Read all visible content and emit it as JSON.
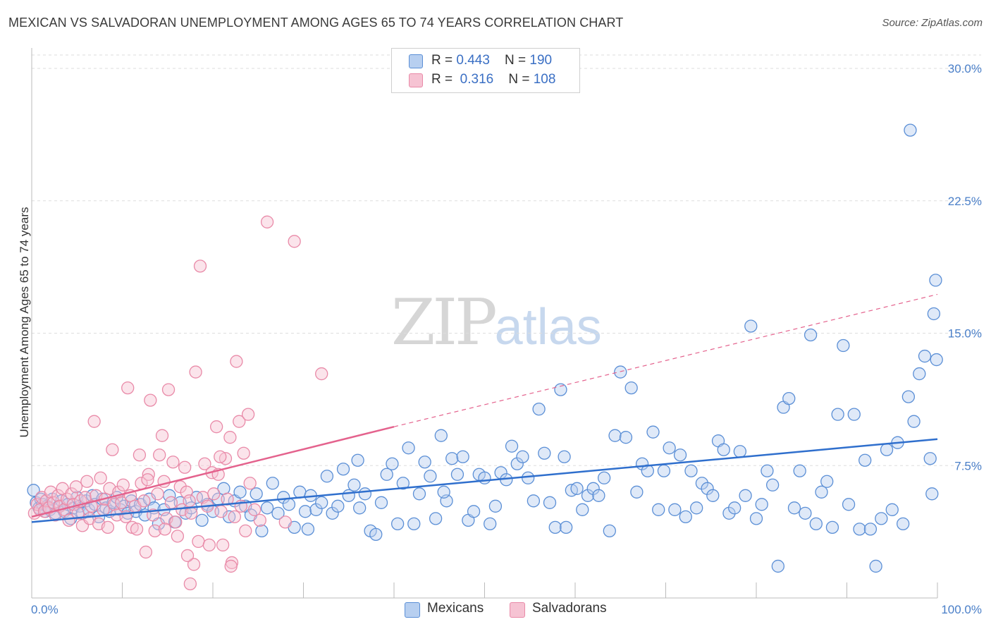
{
  "title": "MEXICAN VS SALVADORAN UNEMPLOYMENT AMONG AGES 65 TO 74 YEARS CORRELATION CHART",
  "source": "Source: ZipAtlas.com",
  "watermark": {
    "zip": "ZIP",
    "atlas": "atlas"
  },
  "legend": {
    "r_label": "R = ",
    "n_label": "N = ",
    "mexicans": {
      "r": "0.443",
      "n": "190"
    },
    "salvadorans": {
      "r": "0.316",
      "n": "108"
    }
  },
  "bottom_legend": {
    "mexicans": "Mexicans",
    "salvadorans": "Salvadorans"
  },
  "colors": {
    "mexicans": "#5b8fd6",
    "mexicans_fill": "#b7cff0",
    "mexicans_line": "#2f6fcd",
    "salvadorans": "#e98aa8",
    "salvadorans_fill": "#f6c3d3",
    "salvadorans_line": "#e4628d",
    "tick": "#4a7fc8",
    "grid": "#dddddd"
  },
  "chart_data": {
    "type": "scatter",
    "title": "MEXICAN VS SALVADORAN UNEMPLOYMENT AMONG AGES 65 TO 74 YEARS CORRELATION CHART",
    "xlabel": "",
    "ylabel": "Unemployment Among Ages 65 to 74 years",
    "xlim": [
      0,
      100
    ],
    "ylim": [
      0,
      30
    ],
    "x_tick_labels": [
      "0.0%",
      "100.0%"
    ],
    "y_ticks": [
      7.5,
      15.0,
      22.5,
      30.0
    ],
    "y_tick_labels": [
      "7.5%",
      "15.0%",
      "22.5%",
      "30.0%"
    ],
    "grid": "horizontal dashed",
    "series": [
      {
        "name": "Mexicans",
        "trend": {
          "x": [
            0,
            100
          ],
          "y": [
            4.3,
            9.0
          ],
          "style": "solid"
        },
        "points": [
          [
            0.2,
            6.1
          ],
          [
            0.5,
            5.4
          ],
          [
            0.8,
            5.1
          ],
          [
            1.0,
            5.6
          ],
          [
            1.2,
            5.3
          ],
          [
            1.5,
            4.9
          ],
          [
            1.7,
            5.2
          ],
          [
            2.0,
            5.0
          ],
          [
            2.3,
            5.6
          ],
          [
            2.6,
            4.8
          ],
          [
            3.0,
            5.2
          ],
          [
            3.3,
            5.5
          ],
          [
            3.6,
            4.9
          ],
          [
            4.0,
            5.3
          ],
          [
            4.3,
            4.5
          ],
          [
            4.6,
            5.1
          ],
          [
            5.0,
            5.7
          ],
          [
            5.3,
            5.2
          ],
          [
            5.6,
            4.8
          ],
          [
            6.0,
            5.5
          ],
          [
            6.3,
            5.0
          ],
          [
            6.7,
            5.8
          ],
          [
            7.0,
            5.3
          ],
          [
            7.4,
            4.6
          ],
          [
            7.8,
            5.6
          ],
          [
            8.2,
            5.1
          ],
          [
            8.6,
            4.9
          ],
          [
            9.0,
            5.4
          ],
          [
            9.4,
            5.7
          ],
          [
            9.8,
            5.0
          ],
          [
            10.2,
            5.2
          ],
          [
            10.6,
            4.8
          ],
          [
            11.0,
            5.5
          ],
          [
            11.5,
            4.9
          ],
          [
            12.0,
            5.3
          ],
          [
            12.5,
            4.7
          ],
          [
            13.0,
            5.6
          ],
          [
            13.5,
            5.1
          ],
          [
            14.0,
            4.2
          ],
          [
            14.6,
            5.0
          ],
          [
            15.2,
            5.8
          ],
          [
            15.8,
            4.3
          ],
          [
            16.4,
            5.4
          ],
          [
            17.0,
            4.8
          ],
          [
            17.6,
            5.1
          ],
          [
            18.2,
            5.7
          ],
          [
            18.8,
            4.4
          ],
          [
            19.4,
            5.3
          ],
          [
            20.0,
            4.9
          ],
          [
            20.6,
            5.6
          ],
          [
            21.2,
            6.2
          ],
          [
            21.8,
            4.6
          ],
          [
            22.4,
            5.5
          ],
          [
            23.0,
            6.0
          ],
          [
            23.6,
            5.2
          ],
          [
            24.2,
            4.7
          ],
          [
            24.8,
            5.9
          ],
          [
            25.4,
            3.8
          ],
          [
            26.0,
            5.1
          ],
          [
            26.6,
            6.5
          ],
          [
            27.2,
            4.8
          ],
          [
            27.8,
            5.7
          ],
          [
            28.4,
            5.3
          ],
          [
            29.0,
            4.0
          ],
          [
            29.6,
            6.0
          ],
          [
            30.2,
            4.9
          ],
          [
            30.8,
            5.8
          ],
          [
            31.4,
            5.0
          ],
          [
            32.0,
            5.4
          ],
          [
            32.6,
            6.9
          ],
          [
            33.2,
            4.8
          ],
          [
            33.8,
            5.2
          ],
          [
            34.4,
            7.3
          ],
          [
            35.0,
            5.8
          ],
          [
            35.6,
            6.4
          ],
          [
            36.2,
            5.1
          ],
          [
            36.8,
            5.9
          ],
          [
            37.4,
            3.8
          ],
          [
            38.0,
            3.6
          ],
          [
            38.6,
            5.4
          ],
          [
            39.2,
            7.0
          ],
          [
            39.8,
            7.6
          ],
          [
            40.4,
            4.2
          ],
          [
            41.0,
            6.5
          ],
          [
            41.6,
            8.5
          ],
          [
            42.2,
            4.2
          ],
          [
            42.8,
            5.9
          ],
          [
            43.4,
            7.7
          ],
          [
            44.0,
            6.9
          ],
          [
            44.6,
            4.5
          ],
          [
            45.2,
            9.2
          ],
          [
            45.8,
            5.5
          ],
          [
            46.4,
            7.9
          ],
          [
            47.0,
            7.0
          ],
          [
            47.6,
            8.0
          ],
          [
            48.2,
            4.4
          ],
          [
            48.8,
            4.9
          ],
          [
            49.4,
            7.0
          ],
          [
            50.0,
            6.8
          ],
          [
            50.6,
            4.2
          ],
          [
            51.2,
            5.2
          ],
          [
            51.8,
            7.1
          ],
          [
            52.4,
            6.7
          ],
          [
            53.0,
            8.6
          ],
          [
            53.6,
            7.6
          ],
          [
            54.2,
            8.0
          ],
          [
            54.8,
            6.8
          ],
          [
            55.4,
            5.5
          ],
          [
            56.0,
            10.7
          ],
          [
            56.6,
            8.2
          ],
          [
            57.2,
            5.4
          ],
          [
            57.8,
            4.0
          ],
          [
            58.4,
            11.8
          ],
          [
            59.0,
            4.0
          ],
          [
            59.6,
            6.1
          ],
          [
            60.2,
            6.2
          ],
          [
            60.8,
            5.0
          ],
          [
            61.4,
            5.8
          ],
          [
            62.0,
            6.2
          ],
          [
            62.6,
            5.8
          ],
          [
            63.2,
            6.8
          ],
          [
            63.8,
            3.8
          ],
          [
            64.4,
            9.2
          ],
          [
            65.0,
            12.8
          ],
          [
            65.6,
            9.1
          ],
          [
            66.2,
            11.9
          ],
          [
            66.8,
            6.0
          ],
          [
            67.4,
            7.6
          ],
          [
            68.0,
            7.2
          ],
          [
            68.6,
            9.4
          ],
          [
            69.2,
            5.0
          ],
          [
            69.8,
            7.2
          ],
          [
            70.4,
            8.5
          ],
          [
            71.0,
            5.0
          ],
          [
            71.6,
            8.1
          ],
          [
            72.2,
            4.6
          ],
          [
            72.8,
            7.2
          ],
          [
            73.4,
            5.1
          ],
          [
            74.0,
            6.5
          ],
          [
            74.6,
            6.2
          ],
          [
            75.2,
            5.8
          ],
          [
            75.8,
            8.9
          ],
          [
            76.4,
            8.4
          ],
          [
            77.0,
            4.8
          ],
          [
            77.6,
            5.1
          ],
          [
            78.2,
            8.3
          ],
          [
            78.8,
            5.8
          ],
          [
            79.4,
            15.4
          ],
          [
            80.0,
            4.5
          ],
          [
            80.6,
            5.3
          ],
          [
            81.2,
            7.2
          ],
          [
            81.8,
            6.4
          ],
          [
            82.4,
            1.8
          ],
          [
            83.0,
            10.8
          ],
          [
            83.6,
            11.3
          ],
          [
            84.2,
            5.1
          ],
          [
            84.8,
            7.2
          ],
          [
            85.4,
            4.8
          ],
          [
            86.0,
            14.9
          ],
          [
            86.6,
            4.2
          ],
          [
            87.2,
            6.0
          ],
          [
            87.8,
            6.6
          ],
          [
            88.4,
            4.0
          ],
          [
            89.0,
            10.4
          ],
          [
            89.6,
            14.3
          ],
          [
            90.2,
            5.3
          ],
          [
            90.8,
            10.4
          ],
          [
            91.4,
            3.9
          ],
          [
            92.0,
            7.8
          ],
          [
            92.6,
            3.9
          ],
          [
            93.2,
            1.8
          ],
          [
            93.8,
            4.5
          ],
          [
            94.4,
            8.4
          ],
          [
            95.0,
            5.0
          ],
          [
            95.6,
            8.8
          ],
          [
            96.2,
            4.2
          ],
          [
            96.8,
            11.4
          ],
          [
            97.4,
            10.0
          ],
          [
            98.0,
            12.7
          ],
          [
            98.6,
            13.7
          ],
          [
            99.2,
            7.9
          ],
          [
            99.6,
            16.1
          ],
          [
            99.8,
            18.0
          ],
          [
            97.0,
            26.5
          ],
          [
            99.9,
            13.5
          ],
          [
            99.4,
            5.9
          ],
          [
            58.8,
            8.0
          ],
          [
            45.5,
            6.0
          ],
          [
            36.0,
            7.8
          ],
          [
            30.5,
            3.9
          ]
        ]
      },
      {
        "name": "Salvadorans",
        "trend": {
          "x": [
            0,
            40,
            100
          ],
          "y": [
            4.6,
            9.7,
            17.2
          ],
          "style": "solid then dashed"
        },
        "points": [
          [
            0.3,
            4.8
          ],
          [
            0.6,
            5.3
          ],
          [
            0.9,
            5.0
          ],
          [
            1.1,
            5.7
          ],
          [
            1.4,
            4.9
          ],
          [
            1.6,
            5.5
          ],
          [
            1.9,
            5.1
          ],
          [
            2.1,
            6.0
          ],
          [
            2.4,
            5.4
          ],
          [
            2.6,
            4.7
          ],
          [
            2.9,
            5.8
          ],
          [
            3.1,
            5.2
          ],
          [
            3.4,
            6.2
          ],
          [
            3.6,
            5.0
          ],
          [
            3.9,
            5.6
          ],
          [
            4.1,
            4.4
          ],
          [
            4.4,
            5.9
          ],
          [
            4.6,
            5.3
          ],
          [
            4.9,
            6.3
          ],
          [
            5.1,
            4.8
          ],
          [
            5.4,
            5.5
          ],
          [
            5.6,
            4.1
          ],
          [
            5.9,
            5.7
          ],
          [
            6.1,
            6.6
          ],
          [
            6.4,
            4.5
          ],
          [
            6.6,
            5.2
          ],
          [
            6.9,
            10.0
          ],
          [
            7.1,
            5.8
          ],
          [
            7.4,
            4.2
          ],
          [
            7.6,
            6.8
          ],
          [
            7.9,
            5.0
          ],
          [
            8.1,
            5.6
          ],
          [
            8.4,
            4.0
          ],
          [
            8.6,
            6.2
          ],
          [
            8.9,
            8.4
          ],
          [
            9.1,
            5.3
          ],
          [
            9.4,
            4.7
          ],
          [
            9.6,
            6.0
          ],
          [
            9.9,
            5.4
          ],
          [
            10.1,
            6.4
          ],
          [
            10.4,
            4.6
          ],
          [
            10.6,
            11.9
          ],
          [
            10.9,
            5.8
          ],
          [
            11.1,
            4.0
          ],
          [
            11.4,
            5.2
          ],
          [
            11.6,
            3.9
          ],
          [
            11.9,
            8.1
          ],
          [
            12.1,
            6.5
          ],
          [
            12.4,
            5.5
          ],
          [
            12.6,
            2.6
          ],
          [
            12.9,
            7.0
          ],
          [
            13.1,
            11.2
          ],
          [
            13.4,
            4.7
          ],
          [
            13.6,
            3.8
          ],
          [
            13.9,
            5.9
          ],
          [
            14.1,
            8.1
          ],
          [
            14.4,
            9.2
          ],
          [
            14.6,
            6.6
          ],
          [
            14.9,
            4.5
          ],
          [
            15.1,
            11.8
          ],
          [
            15.4,
            5.4
          ],
          [
            15.6,
            7.7
          ],
          [
            15.9,
            4.3
          ],
          [
            16.1,
            3.5
          ],
          [
            16.4,
            6.3
          ],
          [
            16.6,
            5.0
          ],
          [
            16.9,
            7.4
          ],
          [
            17.1,
            6.0
          ],
          [
            17.4,
            5.5
          ],
          [
            17.6,
            4.8
          ],
          [
            17.9,
            1.9
          ],
          [
            18.1,
            12.8
          ],
          [
            18.4,
            3.2
          ],
          [
            18.6,
            18.8
          ],
          [
            18.9,
            5.7
          ],
          [
            19.1,
            7.6
          ],
          [
            19.4,
            5.2
          ],
          [
            19.6,
            3.0
          ],
          [
            19.9,
            7.1
          ],
          [
            20.1,
            5.9
          ],
          [
            20.4,
            9.7
          ],
          [
            20.6,
            7.0
          ],
          [
            20.9,
            4.9
          ],
          [
            21.1,
            3.0
          ],
          [
            21.4,
            7.9
          ],
          [
            21.6,
            5.6
          ],
          [
            21.9,
            9.1
          ],
          [
            22.1,
            2.0
          ],
          [
            22.4,
            4.6
          ],
          [
            22.6,
            13.4
          ],
          [
            22.9,
            10.0
          ],
          [
            23.1,
            5.2
          ],
          [
            23.4,
            8.2
          ],
          [
            23.6,
            3.8
          ],
          [
            23.9,
            10.4
          ],
          [
            24.1,
            6.5
          ],
          [
            24.6,
            5.0
          ],
          [
            25.2,
            4.4
          ],
          [
            26.0,
            21.3
          ],
          [
            28.0,
            4.3
          ],
          [
            29.0,
            20.2
          ],
          [
            32.0,
            12.7
          ],
          [
            17.2,
            2.4
          ],
          [
            14.7,
            3.9
          ],
          [
            12.8,
            6.7
          ],
          [
            22.0,
            1.8
          ],
          [
            17.5,
            0.8
          ],
          [
            20.8,
            8.0
          ]
        ]
      }
    ]
  }
}
